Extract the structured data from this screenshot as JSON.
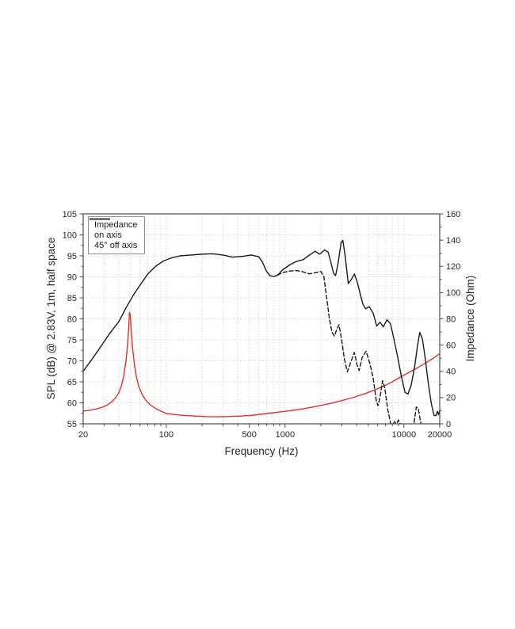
{
  "chart_data": {
    "type": "line",
    "xlabel": "Frequency (Hz)",
    "ylabel_left": "SPL (dB) @ 2.83V, 1m, half space",
    "ylabel_right": "Impedance (Ohm)",
    "x_scale": "log",
    "xlim": [
      20,
      20000
    ],
    "ylim_left": [
      55,
      105
    ],
    "ylim_right": [
      0,
      160
    ],
    "grid": "dotted",
    "legend_position": "upper-left",
    "x_ticks_labeled": [
      20,
      100,
      500,
      1000,
      10000,
      20000
    ],
    "x_ticks_all": [
      20,
      30,
      40,
      50,
      60,
      70,
      80,
      90,
      100,
      200,
      300,
      400,
      500,
      600,
      700,
      800,
      900,
      1000,
      2000,
      3000,
      4000,
      5000,
      6000,
      7000,
      8000,
      9000,
      10000,
      20000
    ],
    "x_gridlines": [
      30,
      40,
      50,
      60,
      70,
      80,
      90,
      100,
      200,
      300,
      400,
      500,
      600,
      700,
      800,
      900,
      1000,
      2000,
      3000,
      4000,
      5000,
      6000,
      7000,
      8000,
      9000,
      10000
    ],
    "y_ticks_left": [
      55,
      60,
      65,
      70,
      75,
      80,
      85,
      90,
      95,
      100,
      105
    ],
    "y_ticks_left_minor": [
      57.5,
      62.5,
      67.5,
      72.5,
      77.5,
      82.5,
      87.5,
      92.5,
      97.5,
      102.5
    ],
    "y_gridlines_left": [
      60,
      65,
      70,
      75,
      80,
      85,
      90,
      95,
      100
    ],
    "y_ticks_right": [
      0,
      20,
      40,
      60,
      80,
      100,
      120,
      140,
      160
    ],
    "y_ticks_right_minor": [
      10,
      30,
      50,
      70,
      90,
      110,
      130,
      150
    ],
    "series": [
      {
        "name": "Impedance",
        "axis": "right",
        "unit": "Ohm",
        "style": "solid",
        "color": "#e03127",
        "points": [
          [
            20,
            9.7
          ],
          [
            23,
            10.4
          ],
          [
            26,
            11.4
          ],
          [
            29,
            12.7
          ],
          [
            32,
            14.4
          ],
          [
            35,
            17
          ],
          [
            38,
            20.5
          ],
          [
            40,
            24
          ],
          [
            42,
            29
          ],
          [
            44,
            37
          ],
          [
            46,
            49
          ],
          [
            47.5,
            63
          ],
          [
            48.5,
            76
          ],
          [
            49,
            85
          ],
          [
            49.8,
            83
          ],
          [
            50.8,
            70
          ],
          [
            52,
            58
          ],
          [
            54,
            45
          ],
          [
            56,
            36
          ],
          [
            59,
            28
          ],
          [
            63,
            22
          ],
          [
            68,
            17.5
          ],
          [
            74,
            14.2
          ],
          [
            81,
            11.8
          ],
          [
            90,
            9.7
          ],
          [
            100,
            7.9
          ],
          [
            120,
            7.0
          ],
          [
            145,
            6.3
          ],
          [
            175,
            5.9
          ],
          [
            220,
            5.5
          ],
          [
            280,
            5.4
          ],
          [
            350,
            5.6
          ],
          [
            450,
            6.1
          ],
          [
            570,
            6.8
          ],
          [
            720,
            8.0
          ],
          [
            900,
            9.0
          ],
          [
            1150,
            10.2
          ],
          [
            1500,
            11.8
          ],
          [
            1900,
            13.6
          ],
          [
            2400,
            15.5
          ],
          [
            3000,
            17.7
          ],
          [
            3800,
            20.3
          ],
          [
            4800,
            23.3
          ],
          [
            6000,
            26.7
          ],
          [
            7500,
            30.7
          ],
          [
            9500,
            36
          ],
          [
            12000,
            41
          ],
          [
            15000,
            46
          ],
          [
            18000,
            50.5
          ],
          [
            20000,
            53.5
          ]
        ]
      },
      {
        "name": "on axis",
        "axis": "left",
        "unit": "dB",
        "style": "solid",
        "color": "#1a1a1a",
        "points": [
          [
            20,
            67.5
          ],
          [
            24,
            70.6
          ],
          [
            28,
            73.3
          ],
          [
            33,
            76.3
          ],
          [
            40,
            79.4
          ],
          [
            46,
            82.7
          ],
          [
            53,
            85.7
          ],
          [
            60,
            88
          ],
          [
            70,
            90.7
          ],
          [
            82,
            92.6
          ],
          [
            95,
            93.8
          ],
          [
            110,
            94.5
          ],
          [
            130,
            95.0
          ],
          [
            160,
            95.2
          ],
          [
            200,
            95.4
          ],
          [
            245,
            95.5
          ],
          [
            300,
            95.2
          ],
          [
            360,
            94.7
          ],
          [
            440,
            94.9
          ],
          [
            520,
            95.2
          ],
          [
            600,
            94.8
          ],
          [
            645,
            93.5
          ],
          [
            695,
            91.4
          ],
          [
            745,
            90.3
          ],
          [
            805,
            90.1
          ],
          [
            865,
            90.4
          ],
          [
            955,
            91.7
          ],
          [
            1100,
            92.9
          ],
          [
            1250,
            93.7
          ],
          [
            1420,
            94.1
          ],
          [
            1600,
            95.2
          ],
          [
            1790,
            96.1
          ],
          [
            1950,
            95.4
          ],
          [
            2150,
            96.4
          ],
          [
            2300,
            95.9
          ],
          [
            2430,
            93.4
          ],
          [
            2560,
            90.8
          ],
          [
            2660,
            90.3
          ],
          [
            2790,
            93.2
          ],
          [
            2960,
            98.2
          ],
          [
            3060,
            98.7
          ],
          [
            3200,
            95.0
          ],
          [
            3400,
            88.4
          ],
          [
            3610,
            89.4
          ],
          [
            3830,
            90.7
          ],
          [
            4060,
            88.6
          ],
          [
            4280,
            86.0
          ],
          [
            4500,
            83.6
          ],
          [
            4750,
            82.4
          ],
          [
            5100,
            82.9
          ],
          [
            5500,
            81.4
          ],
          [
            5900,
            78.3
          ],
          [
            6300,
            79.2
          ],
          [
            6700,
            78.1
          ],
          [
            7200,
            79.8
          ],
          [
            7700,
            78.8
          ],
          [
            8200,
            75.4
          ],
          [
            8800,
            71.3
          ],
          [
            9500,
            66.4
          ],
          [
            10200,
            62.5
          ],
          [
            10800,
            62.1
          ],
          [
            11500,
            64.2
          ],
          [
            12300,
            68.6
          ],
          [
            13000,
            73.6
          ],
          [
            13600,
            76.8
          ],
          [
            14300,
            75.2
          ],
          [
            15100,
            70.6
          ],
          [
            16000,
            64.8
          ],
          [
            17000,
            59.8
          ],
          [
            17900,
            57.0
          ],
          [
            18700,
            57.0
          ],
          [
            19100,
            58.0
          ],
          [
            19600,
            57.2
          ],
          [
            20000,
            58.2
          ]
        ]
      },
      {
        "name": "45° off axis",
        "axis": "left",
        "unit": "dB",
        "style": "dashed",
        "color": "#1a1a1a",
        "points": [
          [
            860,
            90.4
          ],
          [
            950,
            91.0
          ],
          [
            1100,
            91.4
          ],
          [
            1250,
            91.5
          ],
          [
            1420,
            91.2
          ],
          [
            1600,
            90.7
          ],
          [
            1800,
            91.0
          ],
          [
            2000,
            91.3
          ],
          [
            2120,
            90.0
          ],
          [
            2250,
            84.5
          ],
          [
            2360,
            80.0
          ],
          [
            2480,
            76.8
          ],
          [
            2600,
            75.9
          ],
          [
            2720,
            77.5
          ],
          [
            2840,
            78.6
          ],
          [
            2990,
            75.0
          ],
          [
            3150,
            70.5
          ],
          [
            3340,
            67.4
          ],
          [
            3550,
            69.5
          ],
          [
            3820,
            72.0
          ],
          [
            4050,
            68.8
          ],
          [
            4200,
            67.7
          ],
          [
            4450,
            70.8
          ],
          [
            4800,
            72.3
          ],
          [
            5150,
            69.5
          ],
          [
            5500,
            66.0
          ],
          [
            5850,
            60.5
          ],
          [
            6050,
            59.3
          ],
          [
            6300,
            61.5
          ],
          [
            6600,
            65.3
          ],
          [
            6900,
            63.5
          ],
          [
            7300,
            58.5
          ],
          [
            7700,
            55.2
          ],
          [
            8000,
            54.3
          ],
          [
            8300,
            55.7
          ],
          [
            8600,
            54.8
          ],
          [
            9000,
            55.9
          ],
          [
            9500,
            54.2
          ],
          [
            10200,
            53.0
          ],
          [
            11300,
            53.2
          ],
          [
            12100,
            54.8
          ],
          [
            12700,
            59.0
          ],
          [
            13200,
            58.6
          ],
          [
            13900,
            55.0
          ],
          [
            14500,
            53.0
          ],
          [
            16000,
            52.0
          ],
          [
            18000,
            51.5
          ],
          [
            20000,
            51.0
          ]
        ]
      }
    ]
  },
  "colors": {
    "background": "#ffffff",
    "spine": "#4d4d4d",
    "grid": "#c6c6c6",
    "tick_text": "#262626",
    "legend_border": "#8f8f8f"
  }
}
